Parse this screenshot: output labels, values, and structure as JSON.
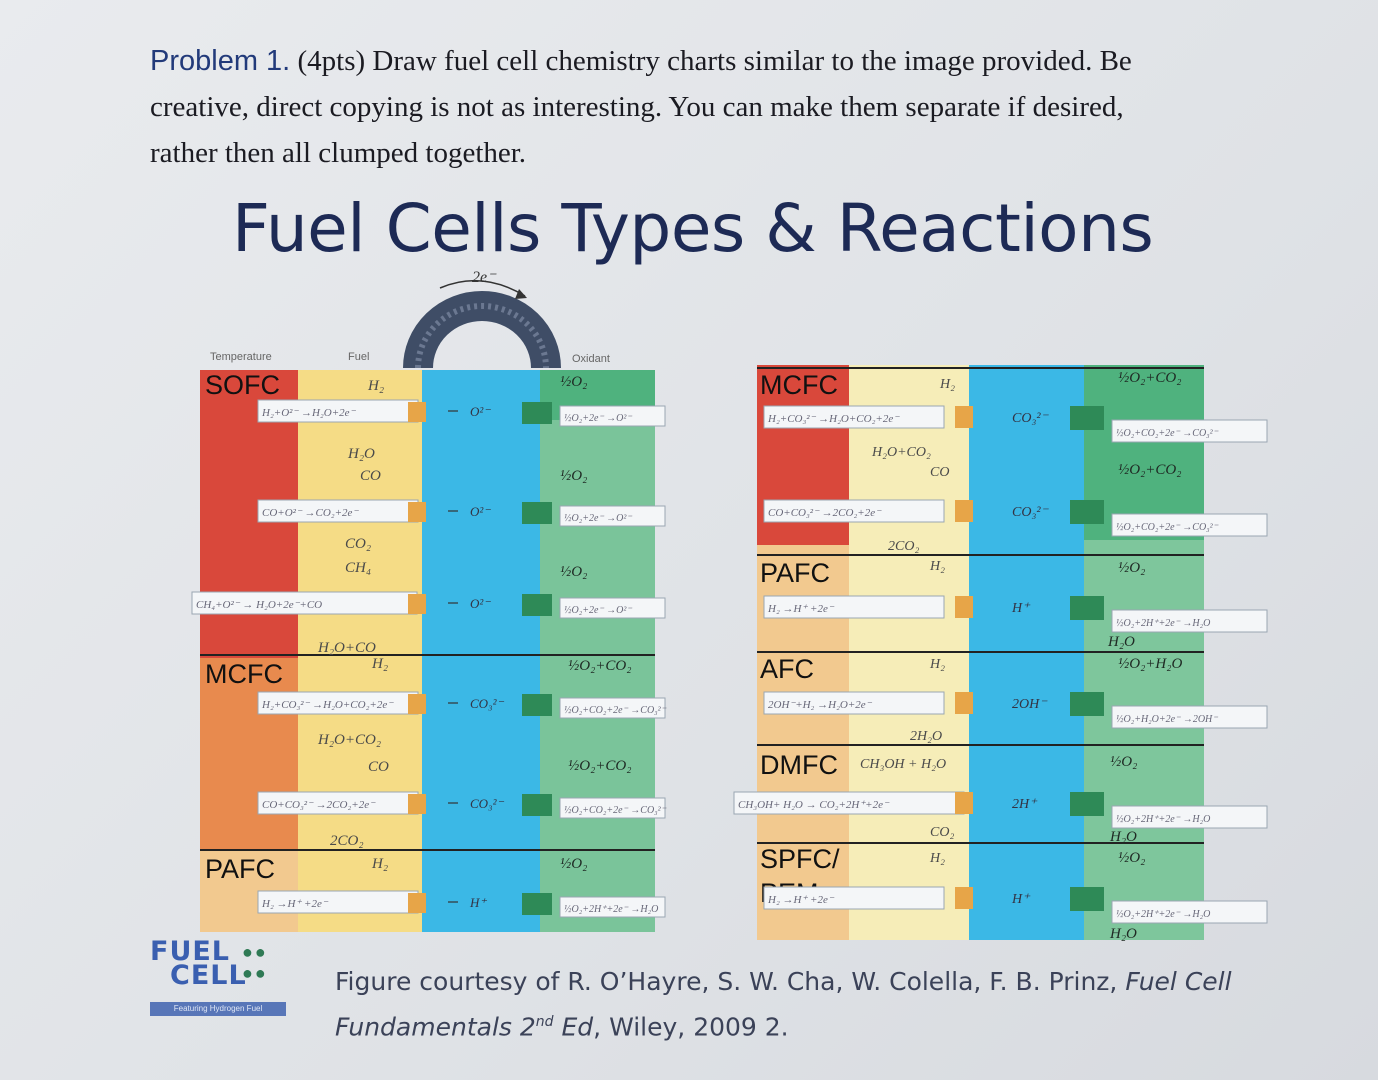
{
  "problem": {
    "lead": "Problem 1.",
    "text_line1": " (4pts) Draw fuel cell chemistry charts similar to the image provided. Be",
    "text_line2": "creative, direct copying is not as interesting. You can make them separate if desired,",
    "text_line3": "rather then all clumped together."
  },
  "figure": {
    "title": "Fuel Cells Types & Reactions",
    "electron_label": "2e⁻",
    "column_headers": {
      "temperature": "Temperature",
      "fuel": "Fuel",
      "oxidant": "Oxidant"
    },
    "colors": {
      "red": "#d9483b",
      "orange": "#e88a4e",
      "peach": "#f2c98f",
      "yellow": "#f5dc86",
      "lightyellow": "#f6edb8",
      "blue": "#3bb8e6",
      "green": "#4fb27e",
      "lightgreen": "#9fd4b0",
      "electrode_orange": "#e7a548",
      "electrode_green": "#2e8a57"
    },
    "left_panel": {
      "cells": [
        "SOFC",
        "MCFC",
        "PAFC"
      ],
      "anode_reactions": [
        "H₂+O²⁻ →H₂O+2e⁻",
        "CO+O²⁻ →CO₂+2e⁻",
        "CH₄+O²⁻ → H₂O+2e⁻+CO",
        "H₂+CO₃²⁻ →H₂O+CO₂+2e⁻",
        "CO+CO₃²⁻ →2CO₂+2e⁻",
        "H₂ →H⁺ +2e⁻"
      ],
      "cathode_reactions": [
        "½O₂+2e⁻ →O²⁻",
        "½O₂+2e⁻ →O²⁻",
        "½O₂+2e⁻ →O²⁻",
        "½O₂+CO₂+2e⁻ →CO₃²⁻",
        "½O₂+CO₂+2e⁻ →CO₃²⁻",
        "½O₂+2H⁺+2e⁻ →H₂O"
      ],
      "ions": [
        "O²⁻",
        "O²⁻",
        "O²⁻",
        "CO₃²⁻",
        "CO₃²⁻",
        "H⁺"
      ],
      "fuel_labels": [
        "H₂",
        "H₂O",
        "CO",
        "CO₂",
        "CH₄",
        "H₂O+CO",
        "H₂",
        "H₂O+CO₂",
        "CO",
        "2CO₂",
        "H₂"
      ],
      "oxidant_labels": [
        "½O₂",
        "½O₂",
        "½O₂",
        "½O₂+CO₂",
        "½O₂+CO₂",
        "½O₂"
      ]
    },
    "right_panel": {
      "cells": [
        "MCFC",
        "PAFC",
        "AFC",
        "DMFC",
        "SPFC/",
        "PEM"
      ],
      "anode_reactions": [
        "H₂+CO₃²⁻ →H₂O+CO₂+2e⁻",
        "CO+CO₃²⁻ →2CO₂+2e⁻",
        "H₂ →H⁺ +2e⁻",
        "2OH⁻+H₂ →H₂O+2e⁻",
        "CH₃OH+ H₂O → CO₂+2H⁺+2e⁻",
        "H₂ →H⁺ +2e⁻"
      ],
      "cathode_reactions": [
        "½O₂+CO₂+2e⁻ →CO₃²⁻",
        "½O₂+CO₂+2e⁻ →CO₃²⁻",
        "½O₂+2H⁺+2e⁻ →H₂O",
        "½O₂+H₂O+2e⁻ →2OH⁻",
        "½O₂+2H⁺+2e⁻ →H₂O",
        "½O₂+2H⁺+2e⁻ →H₂O"
      ],
      "ions": [
        "CO₃²⁻",
        "CO₃²⁻",
        "H⁺",
        "2OH⁻",
        "2H⁺",
        "H⁺"
      ],
      "fuel_labels": [
        "H₂",
        "H₂O+CO₂",
        "CO",
        "2CO₂",
        "H₂",
        "H₂",
        "2H₂O",
        "CH₃OH + H₂O",
        "CO₂",
        "H₂"
      ],
      "oxidant_labels": [
        "½O₂+CO₂",
        "½O₂+CO₂",
        "½O₂",
        "H₂O",
        "½O₂+H₂O",
        "½O₂",
        "H₂O",
        "½O₂",
        "H₂O"
      ]
    }
  },
  "logo": {
    "line1": "FUEL",
    "line2": "CELL",
    "tagline": "Featuring Hydrogen Fuel"
  },
  "caption": {
    "text1": "Figure courtesy of R. O’Hayre, S. W. Cha, W. Colella, F. B. Prinz, ",
    "italic1": "Fuel Cell",
    "italic2": "Fundamentals 2",
    "sup": "nd",
    "italic3": " Ed",
    "text2": ", Wiley, 2009 2."
  }
}
